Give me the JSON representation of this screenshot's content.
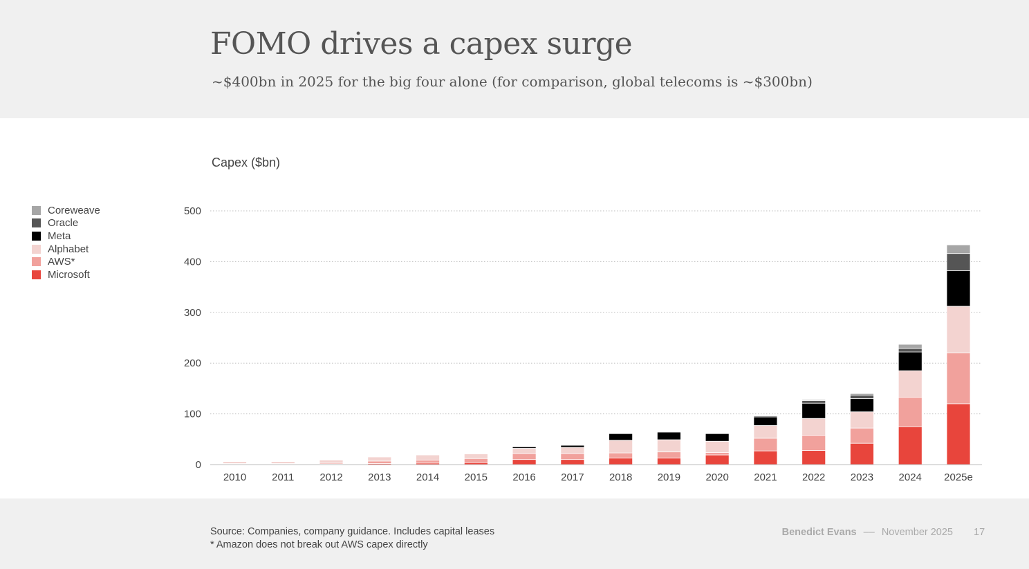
{
  "slide": {
    "title": "FOMO drives a capex surge",
    "subtitle": "~$400bn in 2025 for the big four alone (for comparison, global telecoms is ~$300bn)",
    "source_line1": "Source: Companies, company guidance. Includes capital leases",
    "source_line2": "* Amazon does not break out AWS capex directly",
    "author": "Benedict Evans",
    "separator": "––",
    "date": "November 2025",
    "page_number": "17"
  },
  "chart_data": {
    "type": "bar",
    "stacked": true,
    "title": "",
    "ylabel": "Capex ($bn)",
    "xlabel": "",
    "ylim": [
      0,
      500
    ],
    "yticks": [
      0,
      100,
      200,
      300,
      400,
      500
    ],
    "grid": "horizontal dotted",
    "legend_position": "left",
    "categories": [
      "2010",
      "2011",
      "2012",
      "2013",
      "2014",
      "2015",
      "2016",
      "2017",
      "2018",
      "2019",
      "2020",
      "2021",
      "2022",
      "2023",
      "2024",
      "2025e"
    ],
    "series": [
      {
        "name": "Microsoft",
        "color": "#e8453c",
        "values": [
          1,
          1,
          1,
          2,
          3,
          4,
          10,
          10,
          13,
          13,
          19,
          27,
          28,
          42,
          75,
          120
        ]
      },
      {
        "name": "AWS*",
        "color": "#f1a19c",
        "values": [
          1,
          1,
          2,
          5,
          6,
          8,
          12,
          12,
          10,
          12,
          5,
          25,
          30,
          30,
          58,
          100
        ]
      },
      {
        "name": "Alphabet",
        "color": "#f3d3d0",
        "values": [
          4,
          4,
          6,
          8,
          10,
          9,
          10,
          12,
          25,
          24,
          22,
          25,
          33,
          32,
          52,
          92
        ]
      },
      {
        "name": "Meta",
        "color": "#000000",
        "values": [
          0,
          0,
          0,
          0,
          0,
          0,
          3,
          4,
          13,
          15,
          15,
          17,
          30,
          26,
          37,
          70
        ]
      },
      {
        "name": "Oracle",
        "color": "#555555",
        "values": [
          0,
          0,
          0,
          0,
          0,
          0,
          0,
          0,
          0,
          0,
          0,
          2,
          5,
          7,
          7,
          34
        ]
      },
      {
        "name": "Coreweave",
        "color": "#a6a6a6",
        "values": [
          0,
          0,
          0,
          0,
          0,
          0,
          0,
          0,
          0,
          0,
          0,
          1,
          2,
          3,
          8,
          17
        ]
      }
    ],
    "legend_order": [
      "Coreweave",
      "Oracle",
      "Meta",
      "Alphabet",
      "AWS*",
      "Microsoft"
    ]
  }
}
